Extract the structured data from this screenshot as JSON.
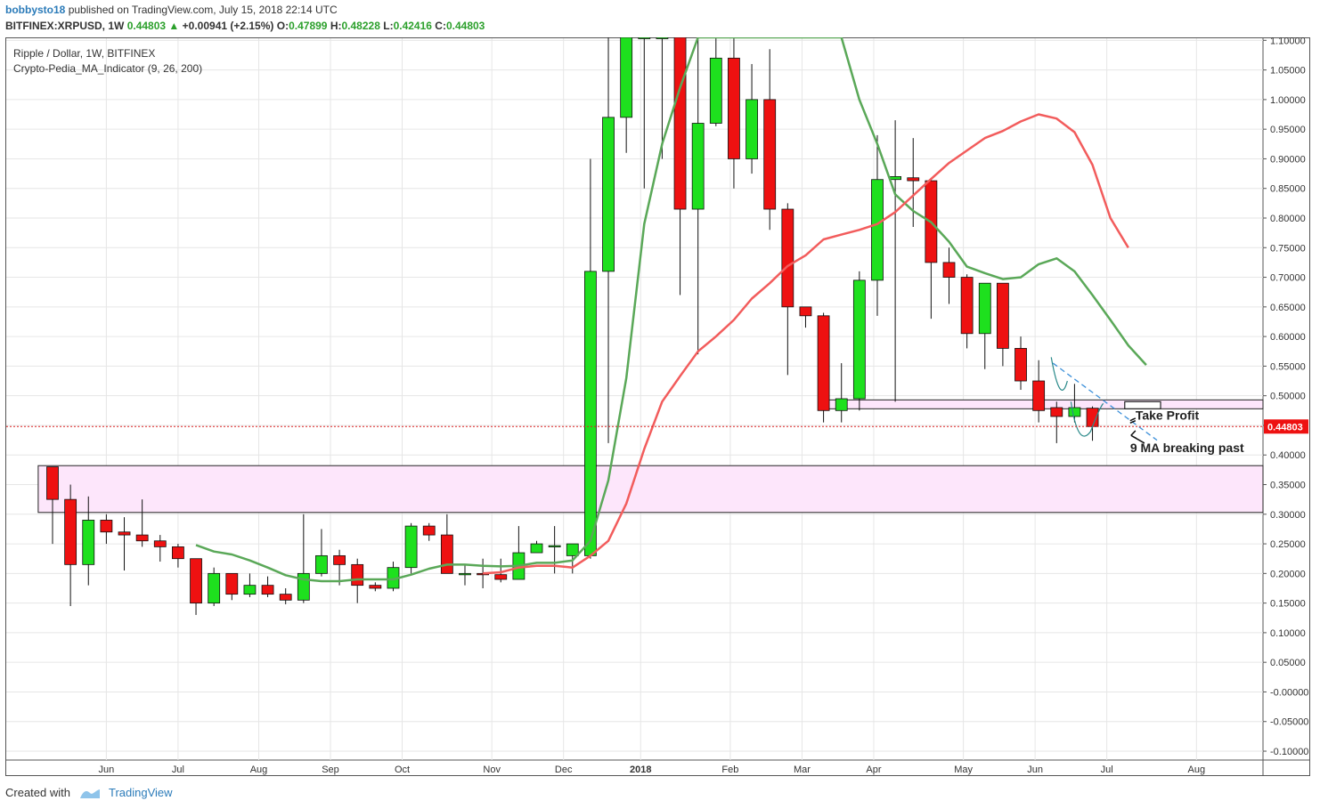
{
  "header": {
    "author": "bobbysto18",
    "published": "published on TradingView.com, July 15, 2018 22:14 UTC",
    "symbol": "BITFINEX:XRPUSD, 1W",
    "last": "0.44803",
    "change": "+0.00941 (+2.15%)",
    "o_label": "O:",
    "o": "0.47899",
    "h_label": "H:",
    "h": "0.48228",
    "l_label": "L:",
    "l": "0.42416",
    "c_label": "C:",
    "c": "0.44803"
  },
  "legend": {
    "line1": "Ripple / Dollar, 1W, BITFINEX",
    "line2": "Crypto-Pedia_MA_Indicator (9, 26, 200)"
  },
  "footer": {
    "created_with": "Created with",
    "brand": "TradingView"
  },
  "colors": {
    "up": "#1ee01e",
    "down": "#ee1111",
    "ma9": "#5aa858",
    "ma26": "#f25c5c",
    "zone": "#fde6fb",
    "grid": "#e6e6e6"
  },
  "chart_data": {
    "type": "candlestick",
    "symbol": "XRPUSD",
    "interval": "1W",
    "ylim": [
      -0.115,
      1.105
    ],
    "y_ticks": [
      "1.10000",
      "1.05000",
      "1.00000",
      "0.95000",
      "0.90000",
      "0.85000",
      "0.80000",
      "0.75000",
      "0.70000",
      "0.65000",
      "0.60000",
      "0.55000",
      "0.50000",
      "0.45000",
      "0.40000",
      "0.35000",
      "0.30000",
      "0.25000",
      "0.20000",
      "0.15000",
      "0.10000",
      "0.05000",
      "-0.00000",
      "-0.05000",
      "-0.10000"
    ],
    "x_ticks": [
      {
        "label": "Jun",
        "i": 3
      },
      {
        "label": "Jul",
        "i": 7
      },
      {
        "label": "Aug",
        "i": 11.5
      },
      {
        "label": "Sep",
        "i": 15.5
      },
      {
        "label": "Oct",
        "i": 19.5
      },
      {
        "label": "Nov",
        "i": 24.5
      },
      {
        "label": "Dec",
        "i": 28.5
      },
      {
        "label": "2018",
        "i": 32.8,
        "bold": true
      },
      {
        "label": "Feb",
        "i": 37.8
      },
      {
        "label": "Mar",
        "i": 41.8
      },
      {
        "label": "Apr",
        "i": 45.8
      },
      {
        "label": "May",
        "i": 50.8
      },
      {
        "label": "Jun",
        "i": 54.8
      },
      {
        "label": "Jul",
        "i": 58.8
      },
      {
        "label": "Aug",
        "i": 63.8
      }
    ],
    "candles": [
      [
        0.38,
        0.38,
        0.25,
        0.325
      ],
      [
        0.325,
        0.35,
        0.145,
        0.215
      ],
      [
        0.215,
        0.33,
        0.18,
        0.29
      ],
      [
        0.29,
        0.3,
        0.25,
        0.27
      ],
      [
        0.27,
        0.295,
        0.205,
        0.265
      ],
      [
        0.265,
        0.325,
        0.245,
        0.255
      ],
      [
        0.255,
        0.265,
        0.22,
        0.245
      ],
      [
        0.245,
        0.25,
        0.21,
        0.225
      ],
      [
        0.225,
        0.225,
        0.13,
        0.15
      ],
      [
        0.15,
        0.21,
        0.145,
        0.2
      ],
      [
        0.2,
        0.2,
        0.155,
        0.165
      ],
      [
        0.165,
        0.2,
        0.16,
        0.18
      ],
      [
        0.18,
        0.195,
        0.16,
        0.165
      ],
      [
        0.165,
        0.175,
        0.148,
        0.155
      ],
      [
        0.155,
        0.3,
        0.15,
        0.2
      ],
      [
        0.2,
        0.275,
        0.195,
        0.23
      ],
      [
        0.23,
        0.24,
        0.18,
        0.215
      ],
      [
        0.215,
        0.225,
        0.15,
        0.18
      ],
      [
        0.18,
        0.185,
        0.17,
        0.175
      ],
      [
        0.175,
        0.22,
        0.17,
        0.21
      ],
      [
        0.21,
        0.285,
        0.2,
        0.28
      ],
      [
        0.28,
        0.285,
        0.255,
        0.265
      ],
      [
        0.265,
        0.3,
        0.2,
        0.2
      ],
      [
        0.2,
        0.215,
        0.18,
        0.2
      ],
      [
        0.2,
        0.225,
        0.175,
        0.198
      ],
      [
        0.198,
        0.225,
        0.185,
        0.19
      ],
      [
        0.19,
        0.28,
        0.19,
        0.235
      ],
      [
        0.235,
        0.255,
        0.235,
        0.25
      ],
      [
        0.247,
        0.28,
        0.2,
        0.247
      ],
      [
        0.23,
        0.25,
        0.2,
        0.25
      ],
      [
        0.23,
        0.9,
        0.225,
        0.71
      ],
      [
        0.71,
        1.105,
        0.42,
        0.97
      ],
      [
        0.97,
        1.105,
        0.91,
        1.105
      ],
      [
        1.105,
        1.105,
        0.85,
        1.105
      ],
      [
        1.105,
        1.105,
        0.9,
        1.105
      ],
      [
        1.105,
        1.105,
        0.67,
        0.815
      ],
      [
        0.815,
        1.105,
        0.57,
        0.96
      ],
      [
        0.96,
        1.105,
        0.955,
        1.07
      ],
      [
        1.07,
        1.105,
        0.85,
        0.9
      ],
      [
        0.9,
        1.06,
        0.875,
        1.0
      ],
      [
        1.0,
        1.085,
        0.78,
        0.815
      ],
      [
        0.815,
        0.825,
        0.535,
        0.65
      ],
      [
        0.65,
        0.65,
        0.615,
        0.635
      ],
      [
        0.635,
        0.64,
        0.455,
        0.475
      ],
      [
        0.475,
        0.555,
        0.455,
        0.495
      ],
      [
        0.495,
        0.71,
        0.475,
        0.695
      ],
      [
        0.695,
        0.94,
        0.635,
        0.865
      ],
      [
        0.865,
        0.965,
        0.49,
        0.87
      ],
      [
        0.868,
        0.935,
        0.785,
        0.863
      ],
      [
        0.863,
        0.865,
        0.63,
        0.725
      ],
      [
        0.725,
        0.75,
        0.655,
        0.7
      ],
      [
        0.7,
        0.705,
        0.58,
        0.605
      ],
      [
        0.605,
        0.69,
        0.545,
        0.69
      ],
      [
        0.69,
        0.69,
        0.55,
        0.58
      ],
      [
        0.58,
        0.6,
        0.51,
        0.525
      ],
      [
        0.525,
        0.56,
        0.455,
        0.475
      ],
      [
        0.48,
        0.49,
        0.42,
        0.465
      ],
      [
        0.465,
        0.52,
        0.455,
        0.48
      ],
      [
        0.479,
        0.482,
        0.424,
        0.448
      ]
    ],
    "series": [
      {
        "name": "MA 9",
        "color": "#5aa858",
        "points": [
          [
            8,
            0.248
          ],
          [
            9,
            0.237
          ],
          [
            10,
            0.232
          ],
          [
            11,
            0.222
          ],
          [
            12,
            0.21
          ],
          [
            13,
            0.197
          ],
          [
            14,
            0.19
          ],
          [
            15,
            0.187
          ],
          [
            16,
            0.187
          ],
          [
            17,
            0.19
          ],
          [
            18,
            0.19
          ],
          [
            19,
            0.19
          ],
          [
            20,
            0.198
          ],
          [
            21,
            0.208
          ],
          [
            22,
            0.215
          ],
          [
            23,
            0.215
          ],
          [
            24,
            0.213
          ],
          [
            25,
            0.212
          ],
          [
            26,
            0.213
          ],
          [
            27,
            0.218
          ],
          [
            28,
            0.218
          ],
          [
            29,
            0.222
          ],
          [
            30,
            0.255
          ],
          [
            31,
            0.357
          ],
          [
            32,
            0.53
          ],
          [
            33,
            0.79
          ],
          [
            34,
            0.925
          ],
          [
            35,
            1.02
          ],
          [
            36,
            1.105
          ],
          [
            44,
            1.105
          ],
          [
            45,
            1.0
          ],
          [
            46,
            0.925
          ],
          [
            47,
            0.84
          ],
          [
            48,
            0.812
          ],
          [
            49,
            0.793
          ],
          [
            50,
            0.76
          ],
          [
            51,
            0.718
          ],
          [
            52,
            0.707
          ],
          [
            53,
            0.697
          ],
          [
            54,
            0.7
          ],
          [
            55,
            0.722
          ],
          [
            56,
            0.732
          ],
          [
            57,
            0.71
          ],
          [
            58,
            0.67
          ],
          [
            59,
            0.628
          ],
          [
            60,
            0.585
          ],
          [
            61,
            0.552
          ]
        ]
      },
      {
        "name": "MA 26",
        "color": "#f25c5c",
        "points": [
          [
            24,
            0.2
          ],
          [
            25,
            0.202
          ],
          [
            26,
            0.21
          ],
          [
            27,
            0.213
          ],
          [
            28,
            0.213
          ],
          [
            29,
            0.21
          ],
          [
            30,
            0.23
          ],
          [
            31,
            0.255
          ],
          [
            32,
            0.318
          ],
          [
            33,
            0.41
          ],
          [
            34,
            0.49
          ],
          [
            35,
            0.533
          ],
          [
            36,
            0.575
          ],
          [
            37,
            0.6
          ],
          [
            38,
            0.628
          ],
          [
            39,
            0.664
          ],
          [
            40,
            0.69
          ],
          [
            41,
            0.719
          ],
          [
            42,
            0.737
          ],
          [
            43,
            0.764
          ],
          [
            44,
            0.772
          ],
          [
            45,
            0.78
          ],
          [
            46,
            0.79
          ],
          [
            47,
            0.81
          ],
          [
            48,
            0.838
          ],
          [
            49,
            0.866
          ],
          [
            50,
            0.893
          ],
          [
            51,
            0.914
          ],
          [
            52,
            0.935
          ],
          [
            53,
            0.947
          ],
          [
            54,
            0.963
          ],
          [
            55,
            0.975
          ],
          [
            56,
            0.968
          ],
          [
            57,
            0.945
          ],
          [
            58,
            0.89
          ],
          [
            59,
            0.8
          ],
          [
            60,
            0.75
          ]
        ]
      }
    ],
    "annotations": [
      {
        "type": "zone",
        "x1": -0.8,
        "x2": 68.5,
        "y1": 0.303,
        "y2": 0.382
      },
      {
        "type": "zone",
        "x1": 42.8,
        "x2": 68.5,
        "y1": 0.478,
        "y2": 0.493
      },
      {
        "type": "box",
        "x1": 59.8,
        "x2": 61.8,
        "y1": 0.478,
        "y2": 0.49
      },
      {
        "type": "label",
        "text": "Take Profit",
        "x": 60.4,
        "y": 0.46
      },
      {
        "type": "label",
        "text": "9 MA breaking past",
        "x": 60.1,
        "y": 0.405
      }
    ],
    "price_line": 0.44803
  }
}
